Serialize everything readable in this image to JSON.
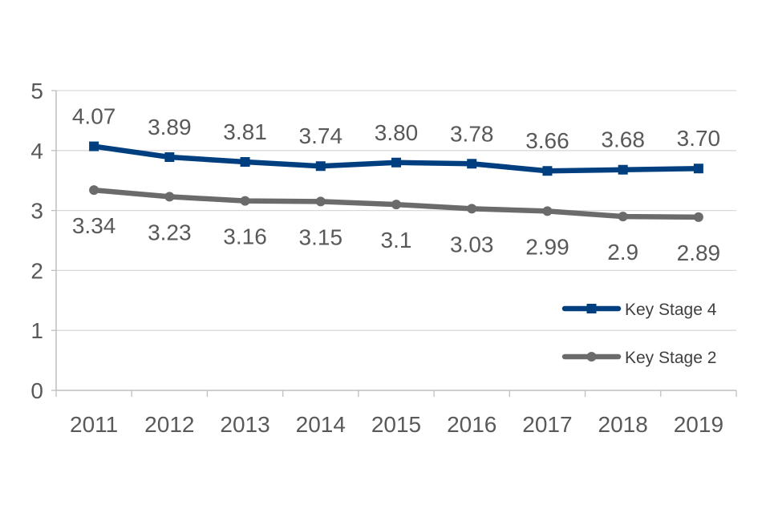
{
  "chart_data": {
    "type": "line",
    "title": "",
    "xlabel": "",
    "ylabel": "",
    "ylim": [
      0,
      5
    ],
    "yticks": [
      0,
      1,
      2,
      3,
      4,
      5
    ],
    "grid": true,
    "legend_position": "bottom-right",
    "categories": [
      "2011",
      "2012",
      "2013",
      "2014",
      "2015",
      "2016",
      "2017",
      "2018",
      "2019"
    ],
    "series": [
      {
        "name": "Key Stage 4",
        "color": "#003F7F",
        "marker": "square",
        "label_position": "above",
        "values": [
          4.07,
          3.89,
          3.81,
          3.74,
          3.8,
          3.78,
          3.66,
          3.68,
          3.7
        ],
        "labels": [
          "4.07",
          "3.89",
          "3.81",
          "3.74",
          "3.80",
          "3.78",
          "3.66",
          "3.68",
          "3.70"
        ]
      },
      {
        "name": "Key Stage 2",
        "color": "#6B6B6B",
        "marker": "circle",
        "label_position": "below",
        "values": [
          3.34,
          3.23,
          3.16,
          3.15,
          3.1,
          3.03,
          2.99,
          2.9,
          2.89
        ],
        "labels": [
          "3.34",
          "3.23",
          "3.16",
          "3.15",
          "3.1",
          "3.03",
          "2.99",
          "2.9",
          "2.89"
        ]
      }
    ]
  }
}
